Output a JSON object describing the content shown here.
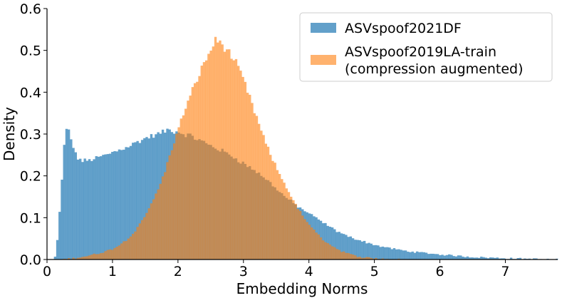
{
  "chart_data": {
    "type": "histogram",
    "title": "",
    "xlabel": "Embedding Norms",
    "ylabel": "Density",
    "xlim": [
      0,
      7.8
    ],
    "ylim": [
      0,
      0.6
    ],
    "xticks": [
      0,
      1,
      2,
      3,
      4,
      5,
      6,
      7
    ],
    "yticks": [
      0.0,
      0.1,
      0.2,
      0.3,
      0.4,
      0.5,
      0.6
    ],
    "xtick_labels": [
      "0",
      "1",
      "2",
      "3",
      "4",
      "5",
      "6",
      "7"
    ],
    "ytick_labels": [
      "0.0",
      "0.1",
      "0.2",
      "0.3",
      "0.4",
      "0.5",
      "0.6"
    ],
    "bin_width": 0.035,
    "legend_position": "top-right",
    "series": [
      {
        "name": "ASVspoof2021DF",
        "label_lines": [
          "ASVspoof2021DF"
        ],
        "color": "#1f77b4",
        "opacity": 0.7,
        "density_profile": [
          [
            0.1,
            0.0
          ],
          [
            0.13,
            0.01
          ],
          [
            0.17,
            0.06
          ],
          [
            0.2,
            0.13
          ],
          [
            0.24,
            0.22
          ],
          [
            0.28,
            0.31
          ],
          [
            0.33,
            0.31
          ],
          [
            0.38,
            0.28
          ],
          [
            0.45,
            0.245
          ],
          [
            0.55,
            0.235
          ],
          [
            0.7,
            0.24
          ],
          [
            0.9,
            0.25
          ],
          [
            1.1,
            0.262
          ],
          [
            1.3,
            0.275
          ],
          [
            1.5,
            0.29
          ],
          [
            1.7,
            0.3
          ],
          [
            1.85,
            0.31
          ],
          [
            2.0,
            0.305
          ],
          [
            2.2,
            0.295
          ],
          [
            2.4,
            0.28
          ],
          [
            2.6,
            0.265
          ],
          [
            2.8,
            0.25
          ],
          [
            3.0,
            0.23
          ],
          [
            3.2,
            0.21
          ],
          [
            3.4,
            0.185
          ],
          [
            3.6,
            0.155
          ],
          [
            3.8,
            0.13
          ],
          [
            4.0,
            0.11
          ],
          [
            4.2,
            0.09
          ],
          [
            4.4,
            0.07
          ],
          [
            4.6,
            0.055
          ],
          [
            4.8,
            0.045
          ],
          [
            5.0,
            0.035
          ],
          [
            5.2,
            0.028
          ],
          [
            5.5,
            0.02
          ],
          [
            6.0,
            0.012
          ],
          [
            6.5,
            0.006
          ],
          [
            7.0,
            0.003
          ],
          [
            7.5,
            0.001
          ],
          [
            7.8,
            0.0
          ]
        ]
      },
      {
        "name": "ASVspoof2019LA-train (compression augmented)",
        "label_lines": [
          "ASVspoof2019LA-train",
          "(compression augmented)"
        ],
        "color": "#ff7f0e",
        "opacity": 0.6,
        "density_profile": [
          [
            0.2,
            0.0
          ],
          [
            0.4,
            0.003
          ],
          [
            0.6,
            0.008
          ],
          [
            0.8,
            0.015
          ],
          [
            1.0,
            0.025
          ],
          [
            1.1,
            0.035
          ],
          [
            1.2,
            0.045
          ],
          [
            1.3,
            0.06
          ],
          [
            1.4,
            0.08
          ],
          [
            1.5,
            0.105
          ],
          [
            1.6,
            0.135
          ],
          [
            1.7,
            0.17
          ],
          [
            1.8,
            0.21
          ],
          [
            1.9,
            0.26
          ],
          [
            2.0,
            0.31
          ],
          [
            2.1,
            0.355
          ],
          [
            2.2,
            0.395
          ],
          [
            2.3,
            0.435
          ],
          [
            2.4,
            0.47
          ],
          [
            2.5,
            0.5
          ],
          [
            2.55,
            0.52
          ],
          [
            2.6,
            0.525
          ],
          [
            2.7,
            0.51
          ],
          [
            2.8,
            0.49
          ],
          [
            2.9,
            0.465
          ],
          [
            3.0,
            0.43
          ],
          [
            3.1,
            0.385
          ],
          [
            3.2,
            0.34
          ],
          [
            3.3,
            0.295
          ],
          [
            3.4,
            0.255
          ],
          [
            3.5,
            0.22
          ],
          [
            3.6,
            0.19
          ],
          [
            3.7,
            0.16
          ],
          [
            3.8,
            0.13
          ],
          [
            3.9,
            0.105
          ],
          [
            4.0,
            0.085
          ],
          [
            4.1,
            0.065
          ],
          [
            4.2,
            0.05
          ],
          [
            4.3,
            0.038
          ],
          [
            4.4,
            0.028
          ],
          [
            4.5,
            0.02
          ],
          [
            4.6,
            0.014
          ],
          [
            4.7,
            0.009
          ],
          [
            4.8,
            0.006
          ],
          [
            5.0,
            0.003
          ],
          [
            5.2,
            0.001
          ],
          [
            5.4,
            0.0
          ]
        ]
      }
    ]
  }
}
